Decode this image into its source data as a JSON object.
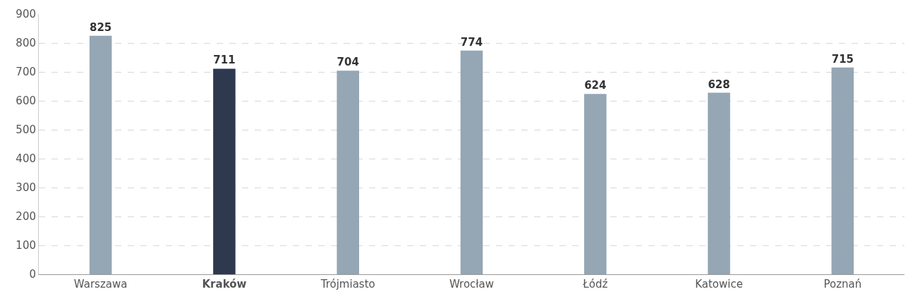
{
  "chart_data": {
    "type": "bar",
    "categories": [
      "Warszawa",
      "Kraków",
      "Trójmiasto",
      "Wrocław",
      "Łódź",
      "Katowice",
      "Poznań"
    ],
    "values": [
      825,
      711,
      704,
      774,
      624,
      628,
      715
    ],
    "colors": [
      "#95a6b4",
      "#2e3950",
      "#95a6b4",
      "#95a6b4",
      "#95a6b4",
      "#95a6b4",
      "#95a6b4"
    ],
    "ylim": [
      0,
      900
    ],
    "yticks": [
      0,
      100,
      200,
      300,
      400,
      500,
      600,
      700,
      800,
      900
    ],
    "grid": "y",
    "data_labels": true
  }
}
